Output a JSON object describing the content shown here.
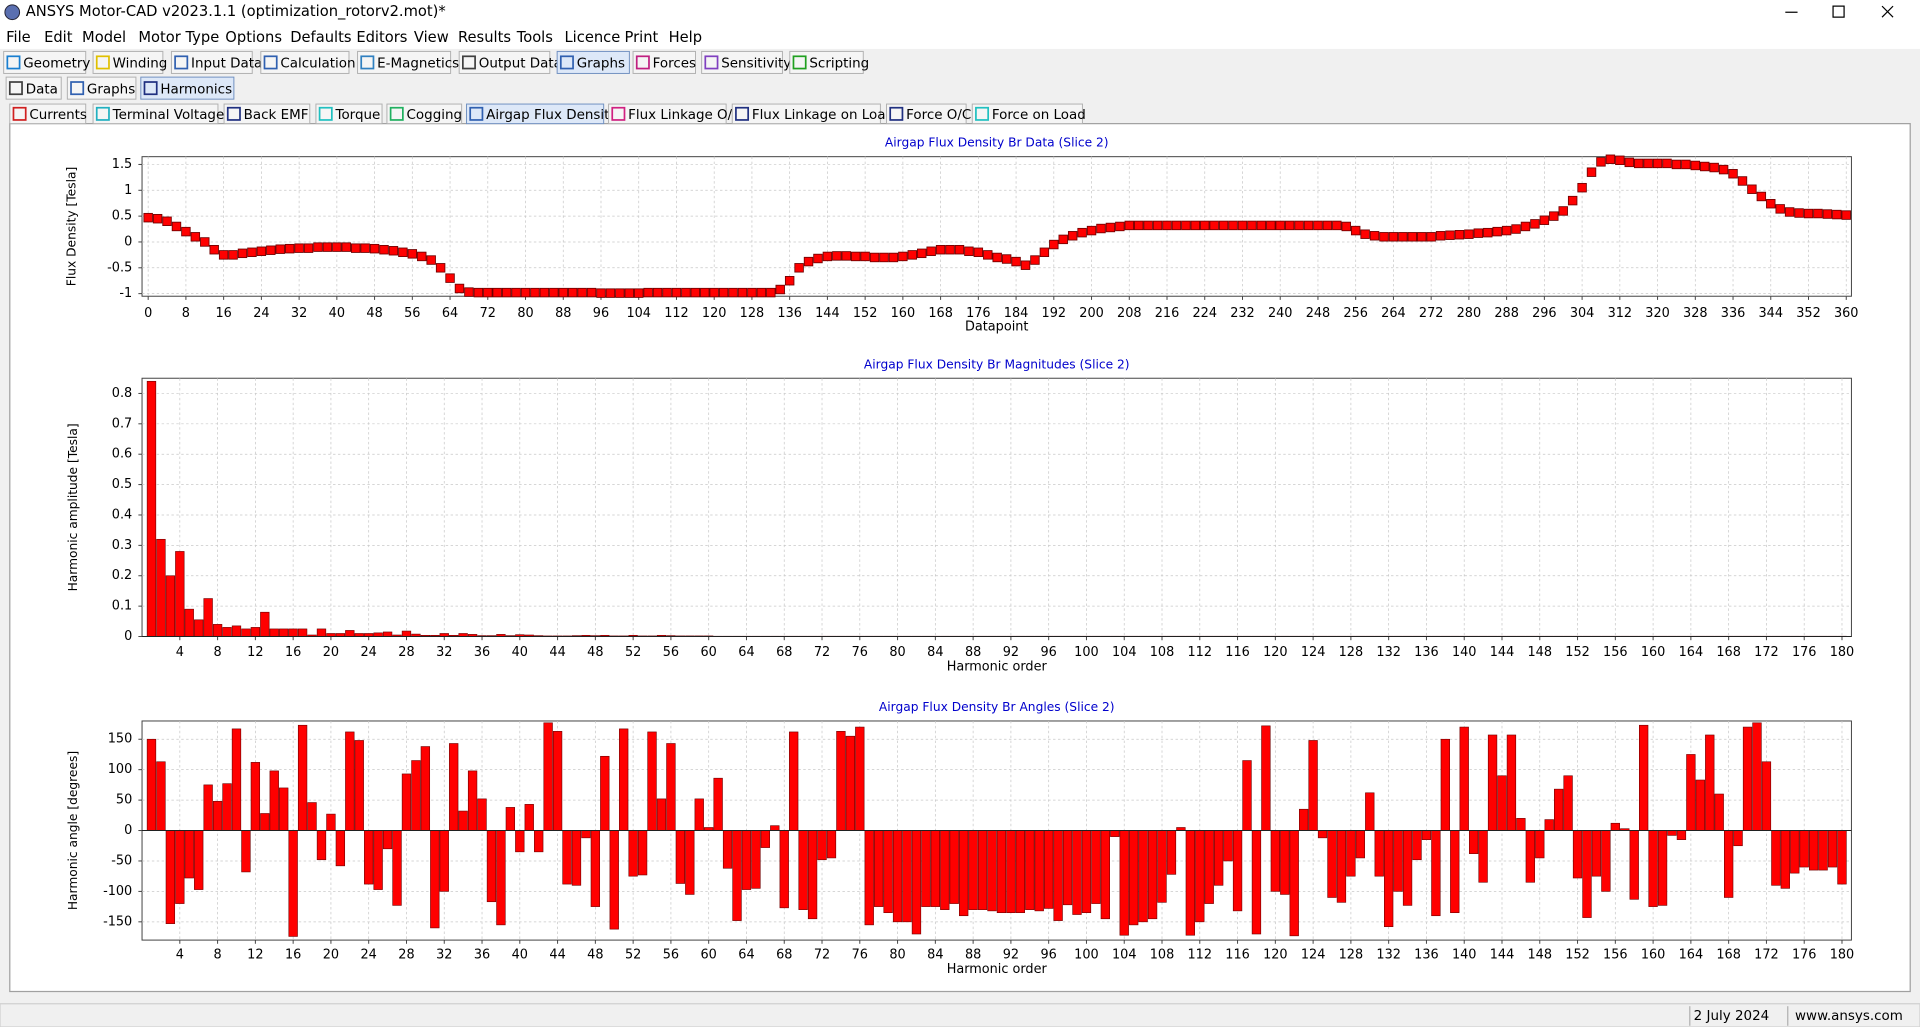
{
  "window": {
    "title": "ANSYS Motor-CAD v2023.1.1 (optimization_rotorv2.mot)*"
  },
  "menu": [
    "File",
    "Edit",
    "Model",
    "Motor Type",
    "Options",
    "Defaults",
    "Editors",
    "View",
    "Results",
    "Tools",
    "Licence",
    "Print",
    "Help"
  ],
  "toolbar_tabs": [
    "Geometry",
    "Winding",
    "Input Data",
    "Calculation",
    "E-Magnetics",
    "Output Data",
    "Graphs",
    "Forces",
    "Sensitivity",
    "Scripting"
  ],
  "sub_tabs": [
    "Data",
    "Graphs",
    "Harmonics"
  ],
  "graph_tabs": [
    "Currents",
    "Terminal Voltages",
    "Back EMF",
    "Torque",
    "Cogging",
    "Airgap Flux Density",
    "Flux Linkage O/C",
    "Flux Linkage on Load",
    "Force O/C",
    "Force on Load"
  ],
  "status": {
    "date": "2 July 2024",
    "website": "www.ansys.com"
  },
  "chart_data": [
    {
      "type": "line",
      "title": "Airgap Flux Density Br Data (Slice 2)",
      "x_label": "Datapoint",
      "y_label": "Flux Density [Tesla]",
      "color": "#ff0000",
      "edgecolor": "#700000",
      "grid": true,
      "xlim": [
        -1.3,
        361.1
      ],
      "ylim": [
        -1.05,
        1.65
      ],
      "xticks": [
        0,
        8,
        16,
        24,
        32,
        40,
        48,
        56,
        64,
        72,
        80,
        88,
        96,
        104,
        112,
        120,
        128,
        136,
        144,
        152,
        160,
        168,
        176,
        184,
        192,
        200,
        208,
        216,
        224,
        232,
        240,
        248,
        256,
        264,
        272,
        280,
        288,
        296,
        304,
        312,
        320,
        328,
        336,
        344,
        352,
        360
      ],
      "yticks": [
        -1,
        -0.5,
        0,
        0.5,
        1,
        1.5
      ],
      "x": [
        0,
        2,
        4,
        6,
        8,
        10,
        12,
        14,
        16,
        18,
        20,
        22,
        24,
        26,
        28,
        30,
        32,
        34,
        36,
        38,
        40,
        42,
        44,
        46,
        48,
        50,
        52,
        54,
        56,
        58,
        60,
        62,
        64,
        66,
        68,
        70,
        72,
        74,
        76,
        78,
        80,
        82,
        84,
        86,
        88,
        90,
        92,
        94,
        96,
        98,
        100,
        102,
        104,
        106,
        108,
        110,
        112,
        114,
        116,
        118,
        120,
        122,
        124,
        126,
        128,
        130,
        132,
        134,
        136,
        138,
        140,
        142,
        144,
        146,
        148,
        150,
        152,
        154,
        156,
        158,
        160,
        162,
        164,
        166,
        168,
        170,
        172,
        174,
        176,
        178,
        180,
        182,
        184,
        186,
        188,
        190,
        192,
        194,
        196,
        198,
        200,
        202,
        204,
        206,
        208,
        210,
        212,
        214,
        216,
        218,
        220,
        222,
        224,
        226,
        228,
        230,
        232,
        234,
        236,
        238,
        240,
        242,
        244,
        246,
        248,
        250,
        252,
        254,
        256,
        258,
        260,
        262,
        264,
        266,
        268,
        270,
        272,
        274,
        276,
        278,
        280,
        282,
        284,
        286,
        288,
        290,
        292,
        294,
        296,
        298,
        300,
        302,
        304,
        306,
        308,
        310,
        312,
        314,
        316,
        318,
        320,
        322,
        324,
        326,
        328,
        330,
        332,
        334,
        336,
        338,
        340,
        342,
        344,
        346,
        348,
        350,
        352,
        354,
        356,
        358,
        360
      ],
      "values": [
        0.47,
        0.45,
        0.4,
        0.3,
        0.2,
        0.1,
        0,
        -0.15,
        -0.25,
        -0.25,
        -0.22,
        -0.2,
        -0.18,
        -0.16,
        -0.14,
        -0.13,
        -0.12,
        -0.12,
        -0.1,
        -0.1,
        -0.1,
        -0.1,
        -0.12,
        -0.12,
        -0.13,
        -0.15,
        -0.17,
        -0.2,
        -0.23,
        -0.28,
        -0.35,
        -0.5,
        -0.7,
        -0.9,
        -0.97,
        -0.98,
        -0.98,
        -0.98,
        -0.98,
        -0.98,
        -0.98,
        -0.98,
        -0.98,
        -0.98,
        -0.98,
        -0.98,
        -0.98,
        -0.98,
        -0.99,
        -0.99,
        -0.99,
        -0.99,
        -0.99,
        -0.98,
        -0.98,
        -0.98,
        -0.98,
        -0.98,
        -0.98,
        -0.98,
        -0.98,
        -0.98,
        -0.98,
        -0.98,
        -0.98,
        -0.98,
        -0.98,
        -0.92,
        -0.75,
        -0.5,
        -0.38,
        -0.32,
        -0.28,
        -0.27,
        -0.27,
        -0.28,
        -0.28,
        -0.3,
        -0.3,
        -0.3,
        -0.28,
        -0.25,
        -0.22,
        -0.18,
        -0.15,
        -0.15,
        -0.15,
        -0.18,
        -0.2,
        -0.25,
        -0.3,
        -0.33,
        -0.38,
        -0.45,
        -0.35,
        -0.2,
        -0.05,
        0.05,
        0.12,
        0.18,
        0.22,
        0.26,
        0.28,
        0.3,
        0.32,
        0.32,
        0.32,
        0.32,
        0.32,
        0.32,
        0.32,
        0.32,
        0.32,
        0.32,
        0.32,
        0.32,
        0.32,
        0.32,
        0.32,
        0.32,
        0.32,
        0.32,
        0.32,
        0.32,
        0.32,
        0.32,
        0.32,
        0.3,
        0.22,
        0.15,
        0.12,
        0.1,
        0.1,
        0.1,
        0.1,
        0.1,
        0.1,
        0.12,
        0.13,
        0.14,
        0.15,
        0.17,
        0.18,
        0.2,
        0.22,
        0.25,
        0.3,
        0.35,
        0.42,
        0.5,
        0.6,
        0.8,
        1.05,
        1.35,
        1.55,
        1.6,
        1.58,
        1.54,
        1.52,
        1.52,
        1.52,
        1.52,
        1.5,
        1.5,
        1.48,
        1.46,
        1.44,
        1.4,
        1.32,
        1.18,
        1.02,
        0.88,
        0.74,
        0.64,
        0.58,
        0.56,
        0.55,
        0.55,
        0.54,
        0.53,
        0.52
      ]
    },
    {
      "type": "bar",
      "title": "Airgap Flux Density Br Magnitudes (Slice 2)",
      "x_label": "Harmonic order",
      "y_label": "Harmonic amplitude [Tesla]",
      "color": "#ff0000",
      "edgecolor": "#700000",
      "grid": true,
      "xlim": [
        0,
        181
      ],
      "ylim": [
        0,
        0.85
      ],
      "xticks": [
        4,
        8,
        12,
        16,
        20,
        24,
        28,
        32,
        36,
        40,
        44,
        48,
        52,
        56,
        60,
        64,
        68,
        72,
        76,
        80,
        84,
        88,
        92,
        96,
        100,
        104,
        108,
        112,
        116,
        120,
        124,
        128,
        132,
        136,
        140,
        144,
        148,
        152,
        156,
        160,
        164,
        168,
        172,
        176,
        180
      ],
      "yticks": [
        0,
        0.1,
        0.2,
        0.3,
        0.4,
        0.5,
        0.6,
        0.7,
        0.8
      ],
      "x": [
        1,
        2,
        3,
        4,
        5,
        6,
        7,
        8,
        9,
        10,
        11,
        12,
        13,
        14,
        15,
        16,
        17,
        18,
        19,
        20,
        21,
        22,
        23,
        24,
        25,
        26,
        27,
        28,
        29,
        30,
        31,
        32,
        33,
        34,
        35,
        36,
        37,
        38,
        39,
        40,
        41,
        42,
        43,
        44,
        45,
        46,
        47,
        48,
        49,
        50,
        51,
        52,
        53,
        54,
        55,
        56,
        57,
        58,
        59,
        60,
        61,
        62,
        63,
        64,
        65,
        66,
        67,
        68,
        69,
        70,
        71,
        72,
        73,
        74,
        75,
        76,
        77,
        78,
        79,
        80,
        81,
        82,
        83,
        84,
        85,
        86,
        87,
        88,
        89,
        90,
        91,
        92,
        93,
        94,
        95,
        96,
        97,
        98,
        99,
        100,
        101,
        102,
        103,
        104,
        105,
        106,
        107,
        108,
        109,
        110,
        111,
        112,
        113,
        114,
        115,
        116,
        117,
        118,
        119,
        120,
        121,
        122,
        123,
        124,
        125,
        126,
        127,
        128,
        129,
        130,
        131,
        132,
        133,
        134,
        135,
        136,
        137,
        138,
        139,
        140,
        141,
        142,
        143,
        144,
        145,
        146,
        147,
        148,
        149,
        150,
        151,
        152,
        153,
        154,
        155,
        156,
        157,
        158,
        159,
        160,
        161,
        162,
        163,
        164,
        165,
        166,
        167,
        168,
        169,
        170,
        171,
        172,
        173,
        174,
        175,
        176,
        177,
        178,
        179,
        180
      ],
      "values": [
        0.84,
        0.32,
        0.2,
        0.28,
        0.09,
        0.055,
        0.125,
        0.04,
        0.03,
        0.035,
        0.025,
        0.03,
        0.08,
        0.025,
        0.025,
        0.025,
        0.025,
        0.005,
        0.025,
        0.01,
        0.01,
        0.02,
        0.01,
        0.01,
        0.012,
        0.015,
        0.005,
        0.018,
        0.008,
        0.004,
        0.004,
        0.01,
        0.004,
        0.01,
        0.007,
        0.003,
        0.003,
        0.007,
        0.003,
        0.006,
        0.005,
        0.003,
        0.002,
        0.002,
        0.002,
        0.003,
        0.004,
        0.003,
        0.004,
        0.002,
        0.002,
        0.004,
        0.002,
        0.002,
        0.004,
        0.003,
        0.002,
        0.002,
        0.002,
        0.002,
        0.001,
        0.001,
        0.001,
        0.001,
        0.001,
        0.001,
        0.001,
        0.001,
        0.001,
        0.001,
        0.001,
        0.001,
        0.001,
        0.001,
        0.001,
        0.001,
        0.001,
        0.001,
        0.001,
        0.001,
        0.001,
        0.001,
        0.001,
        0.001,
        0.001,
        0.001,
        0.001,
        0.001,
        0.001,
        0.001,
        0.001,
        0.001,
        0.001,
        0.001,
        0.001,
        0.001,
        0.001,
        0.001,
        0.001,
        0.001,
        0.001,
        0.001,
        0.001,
        0.001,
        0.001,
        0.001,
        0.001,
        0.001,
        0.001,
        0.001,
        0.001,
        0.001,
        0.001,
        0.001,
        0.001,
        0.001,
        0.001,
        0.001,
        0.001,
        0.001,
        0.001,
        0.001,
        0.001,
        0.001,
        0.001,
        0.001,
        0.001,
        0.001,
        0.001,
        0.001,
        0.001,
        0.001,
        0.001,
        0.001,
        0.001,
        0.001,
        0.001,
        0.001,
        0.001,
        0.001,
        0.001,
        0.001,
        0.001,
        0.001,
        0.001,
        0.001,
        0.001,
        0.001,
        0.001,
        0.001,
        0.001,
        0.001,
        0.001,
        0.001,
        0.001,
        0.001,
        0.001,
        0.001,
        0.001,
        0.001,
        0.001,
        0.001,
        0.001,
        0.001,
        0.001,
        0.001,
        0.001,
        0.001,
        0.001,
        0.001,
        0.001,
        0.001,
        0.001,
        0.001,
        0.001,
        0.001,
        0.001,
        0.001,
        0.001,
        0.001
      ]
    },
    {
      "type": "bar",
      "title": "Airgap Flux Density Br Angles (Slice 2)",
      "x_label": "Harmonic order",
      "y_label": "Harmonic angle [degrees]",
      "color": "#ff0000",
      "edgecolor": "#700000",
      "grid": true,
      "xlim": [
        0,
        181
      ],
      "ylim": [
        -180,
        180
      ],
      "xticks": [
        4,
        8,
        12,
        16,
        20,
        24,
        28,
        32,
        36,
        40,
        44,
        48,
        52,
        56,
        60,
        64,
        68,
        72,
        76,
        80,
        84,
        88,
        92,
        96,
        100,
        104,
        108,
        112,
        116,
        120,
        124,
        128,
        132,
        136,
        140,
        144,
        148,
        152,
        156,
        160,
        164,
        168,
        172,
        176,
        180
      ],
      "yticks": [
        -150,
        -100,
        -50,
        0,
        50,
        100,
        150
      ],
      "x": [
        1,
        2,
        3,
        4,
        5,
        6,
        7,
        8,
        9,
        10,
        11,
        12,
        13,
        14,
        15,
        16,
        17,
        18,
        19,
        20,
        21,
        22,
        23,
        24,
        25,
        26,
        27,
        28,
        29,
        30,
        31,
        32,
        33,
        34,
        35,
        36,
        37,
        38,
        39,
        40,
        41,
        42,
        43,
        44,
        45,
        46,
        47,
        48,
        49,
        50,
        51,
        52,
        53,
        54,
        55,
        56,
        57,
        58,
        59,
        60,
        61,
        62,
        63,
        64,
        65,
        66,
        67,
        68,
        69,
        70,
        71,
        72,
        73,
        74,
        75,
        76,
        77,
        78,
        79,
        80,
        81,
        82,
        83,
        84,
        85,
        86,
        87,
        88,
        89,
        90,
        91,
        92,
        93,
        94,
        95,
        96,
        97,
        98,
        99,
        100,
        101,
        102,
        103,
        104,
        105,
        106,
        107,
        108,
        109,
        110,
        111,
        112,
        113,
        114,
        115,
        116,
        117,
        118,
        119,
        120,
        121,
        122,
        123,
        124,
        125,
        126,
        127,
        128,
        129,
        130,
        131,
        132,
        133,
        134,
        135,
        136,
        137,
        138,
        139,
        140,
        141,
        142,
        143,
        144,
        145,
        146,
        147,
        148,
        149,
        150,
        151,
        152,
        153,
        154,
        155,
        156,
        157,
        158,
        159,
        160,
        161,
        162,
        163,
        164,
        165,
        166,
        167,
        168,
        169,
        170,
        171,
        172,
        173,
        174,
        175,
        176,
        177,
        178,
        179,
        180
      ],
      "values": [
        150,
        113,
        -153,
        -120,
        -78,
        -97,
        75,
        48,
        77,
        167,
        -68,
        112,
        28,
        98,
        70,
        -174,
        173,
        46,
        -48,
        27,
        -58,
        162,
        148,
        -88,
        -97,
        -30,
        -123,
        93,
        115,
        138,
        -160,
        -100,
        143,
        32,
        98,
        52,
        -117,
        -155,
        38,
        -35,
        43,
        -35,
        177,
        163,
        -88,
        -90,
        -12,
        -125,
        122,
        -162,
        167,
        -75,
        -73,
        162,
        52,
        143,
        -87,
        -105,
        52,
        5,
        86,
        -62,
        -148,
        -97,
        -95,
        -28,
        8,
        -127,
        162,
        -130,
        -145,
        -48,
        -45,
        163,
        155,
        170,
        -155,
        -125,
        -135,
        -150,
        -150,
        -170,
        -125,
        -125,
        -130,
        -120,
        -140,
        -130,
        -130,
        -132,
        -135,
        -135,
        -135,
        -130,
        -132,
        -128,
        -148,
        -122,
        -138,
        -135,
        -120,
        -145,
        -10,
        -172,
        -155,
        -150,
        -145,
        -118,
        -72,
        5,
        -172,
        -150,
        -120,
        -90,
        -50,
        -132,
        115,
        -170,
        172,
        -100,
        -105,
        -173,
        35,
        148,
        -12,
        -110,
        -118,
        -75,
        -45,
        62,
        -75,
        -158,
        -100,
        -123,
        -48,
        -15,
        -140,
        150,
        -135,
        170,
        -38,
        -85,
        157,
        90,
        157,
        20,
        -85,
        -45,
        18,
        68,
        90,
        -78,
        -143,
        -75,
        -100,
        12,
        3,
        -113,
        173,
        -125,
        -123,
        -8,
        -15,
        125,
        83,
        157,
        60,
        -110,
        -25,
        170,
        177,
        113,
        -90,
        -95,
        -70,
        -60,
        -65,
        -65,
        -60,
        -88
      ]
    }
  ]
}
